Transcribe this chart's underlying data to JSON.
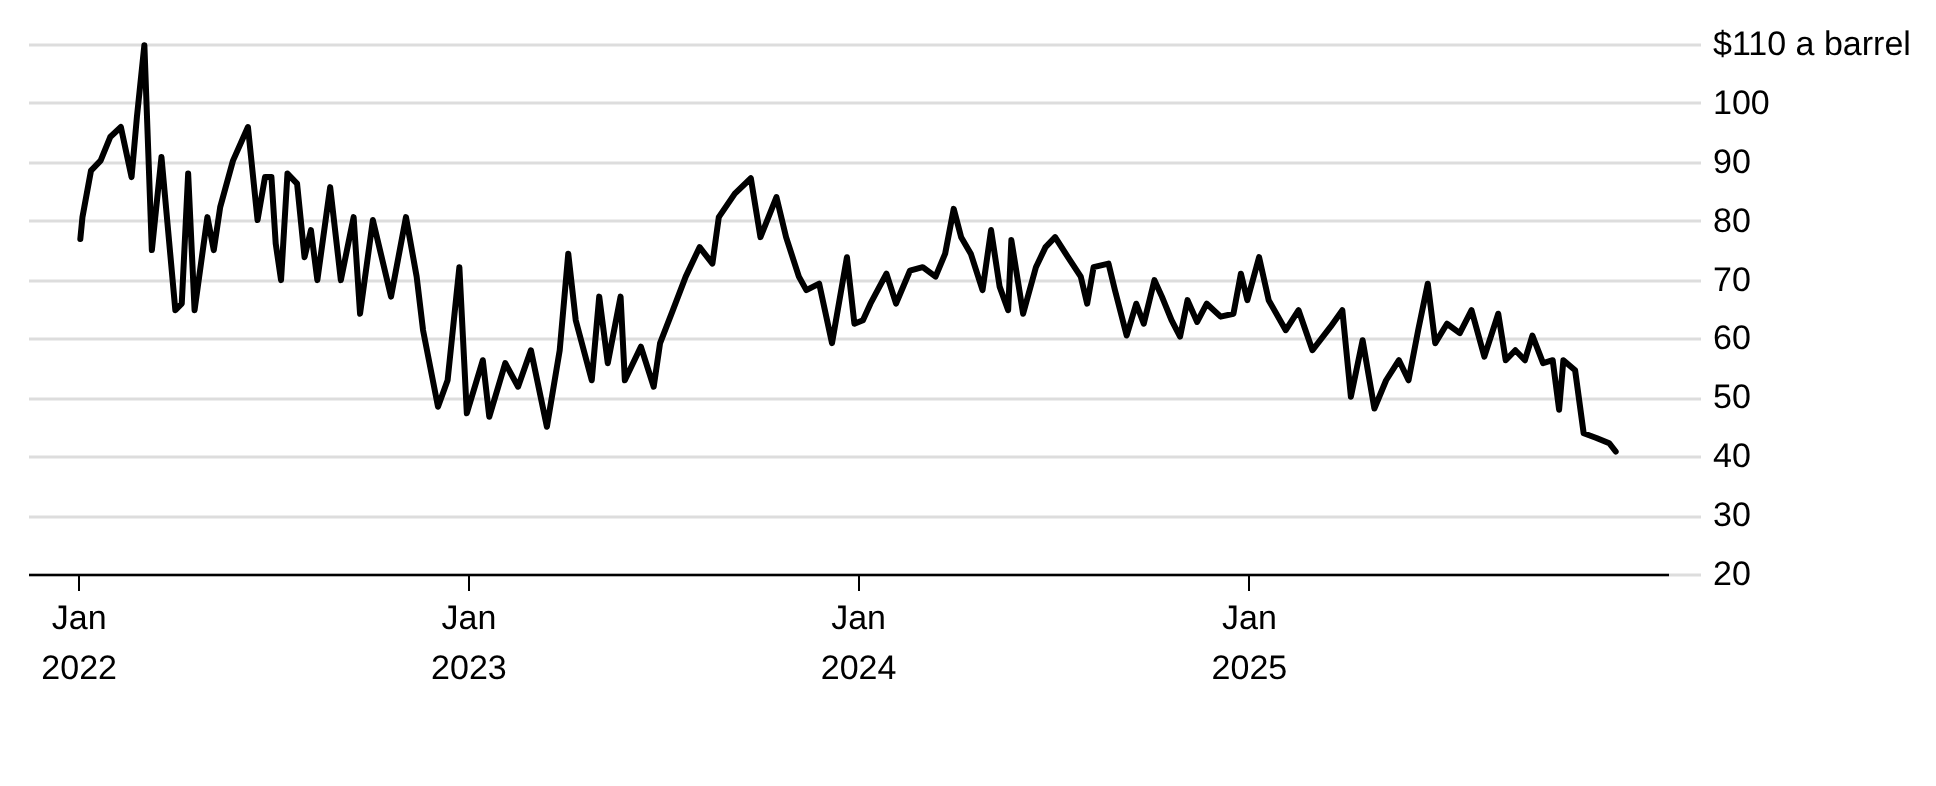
{
  "chart_data": {
    "type": "line",
    "color": "#000000",
    "line_style": "solid",
    "marker": "none",
    "grid": "y",
    "x": [
      "2022-01-03",
      "2022-01-05",
      "2022-01-13",
      "2022-01-22",
      "2022-01-31",
      "2022-02-10",
      "2022-02-20",
      "2022-02-25",
      "2022-03-04",
      "2022-03-11",
      "2022-03-20",
      "2022-04-02",
      "2022-04-08",
      "2022-04-14",
      "2022-04-20",
      "2022-05-02",
      "2022-05-08",
      "2022-05-14",
      "2022-05-26",
      "2022-06-09",
      "2022-06-18",
      "2022-06-25",
      "2022-07-01",
      "2022-07-05",
      "2022-07-10",
      "2022-07-16",
      "2022-07-25",
      "2022-08-01",
      "2022-08-07",
      "2022-08-13",
      "2022-08-25",
      "2022-09-04",
      "2022-09-16",
      "2022-09-22",
      "2022-10-04",
      "2022-10-21",
      "2022-11-04",
      "2022-11-14",
      "2022-11-20",
      "2022-12-04",
      "2022-12-13",
      "2022-12-24",
      "2022-12-31",
      "2023-01-15",
      "2023-01-21",
      "2023-02-05",
      "2023-02-17",
      "2023-03-01",
      "2023-03-16",
      "2023-03-28",
      "2023-04-05",
      "2023-04-12",
      "2023-04-27",
      "2023-05-04",
      "2023-05-12",
      "2023-05-24",
      "2023-05-28",
      "2023-06-12",
      "2023-06-24",
      "2023-06-30",
      "2023-07-12",
      "2023-07-24",
      "2023-08-06",
      "2023-08-18",
      "2023-08-24",
      "2023-09-08",
      "2023-09-23",
      "2023-10-02",
      "2023-10-17",
      "2023-10-26",
      "2023-11-07",
      "2023-11-14",
      "2023-11-26",
      "2023-12-08",
      "2023-12-22",
      "2023-12-29",
      "2024-01-06",
      "2024-01-13",
      "2024-01-28",
      "2024-02-06",
      "2024-02-19",
      "2024-03-02",
      "2024-03-14",
      "2024-03-23",
      "2024-03-31",
      "2024-04-07",
      "2024-04-16",
      "2024-04-27",
      "2024-05-05",
      "2024-05-13",
      "2024-05-21",
      "2024-05-24",
      "2024-06-04",
      "2024-06-16",
      "2024-06-25",
      "2024-07-04",
      "2024-07-16",
      "2024-07-28",
      "2024-08-03",
      "2024-08-09",
      "2024-08-23",
      "2024-08-29",
      "2024-09-09",
      "2024-09-18",
      "2024-09-25",
      "2024-10-05",
      "2024-10-12",
      "2024-10-21",
      "2024-10-29",
      "2024-11-05",
      "2024-11-14",
      "2024-11-23",
      "2024-12-06",
      "2024-12-18",
      "2024-12-25",
      "2024-12-31",
      "2025-01-11",
      "2025-01-20",
      "2025-02-05",
      "2025-02-17",
      "2025-03-02",
      "2025-03-19",
      "2025-03-30",
      "2025-04-07",
      "2025-04-18",
      "2025-04-29",
      "2025-05-10",
      "2025-05-22",
      "2025-05-31",
      "2025-06-09",
      "2025-06-18",
      "2025-06-25",
      "2025-07-06",
      "2025-07-18",
      "2025-07-29",
      "2025-08-10",
      "2025-08-23",
      "2025-08-30",
      "2025-09-08",
      "2025-09-17",
      "2025-09-24",
      "2025-10-04",
      "2025-10-13",
      "2025-10-19",
      "2025-10-23",
      "2025-11-03",
      "2025-11-11",
      "2025-11-23",
      "2025-12-05",
      "2025-12-11"
    ],
    "values": [
      76.9,
      80.6,
      88.5,
      90.2,
      94.2,
      95.9,
      87.4,
      97.6,
      109.8,
      75.0,
      90.8,
      64.8,
      65.9,
      88.0,
      64.8,
      80.6,
      75.0,
      82.3,
      90.2,
      95.9,
      80.1,
      87.4,
      87.4,
      76.1,
      69.9,
      88.0,
      86.3,
      73.8,
      78.4,
      69.9,
      85.7,
      69.9,
      80.6,
      64.2,
      80.1,
      67.1,
      80.6,
      70.5,
      61.4,
      48.4,
      52.9,
      72.1,
      47.3,
      56.3,
      46.7,
      55.8,
      51.8,
      58.0,
      45.0,
      58.0,
      74.4,
      63.1,
      52.9,
      67.1,
      55.8,
      67.1,
      52.9,
      58.6,
      51.8,
      59.2,
      64.8,
      70.5,
      75.5,
      72.7,
      80.6,
      84.6,
      87.2,
      77.2,
      84.0,
      77.2,
      70.5,
      68.2,
      69.3,
      59.2,
      73.8,
      62.5,
      63.1,
      65.9,
      71.0,
      65.9,
      71.5,
      72.1,
      70.5,
      74.4,
      82.0,
      77.2,
      74.4,
      68.2,
      78.4,
      68.8,
      64.8,
      76.7,
      64.2,
      72.1,
      75.5,
      77.2,
      73.8,
      70.5,
      65.9,
      72.1,
      72.7,
      68.2,
      60.5,
      65.9,
      62.5,
      69.9,
      67.1,
      63.1,
      60.3,
      66.5,
      62.8,
      65.9,
      63.7,
      64.2,
      71.0,
      66.5,
      73.8,
      66.5,
      61.4,
      64.8,
      58.0,
      62.0,
      64.8,
      50.1,
      59.7,
      48.1,
      52.9,
      56.3,
      52.9,
      61.4,
      69.3,
      59.2,
      62.5,
      60.9,
      64.8,
      56.9,
      64.2,
      56.3,
      58.0,
      56.3,
      60.5,
      55.8,
      56.3,
      47.9,
      56.3,
      54.6,
      43.9,
      43.1,
      42.2,
      40.8
    ],
    "xlim": [
      "2021-11-15",
      "2026-01-29"
    ],
    "xticks": [
      {
        "value": "2022-01-01",
        "label": "Jan 2022"
      },
      {
        "value": "2023-01-01",
        "label": "Jan 2023"
      },
      {
        "value": "2024-01-01",
        "label": "Jan 2024"
      },
      {
        "value": "2025-01-01",
        "label": "Jan 2025"
      }
    ],
    "ylim": [
      20,
      110
    ],
    "yticks": [
      20,
      30,
      40,
      50,
      60,
      70,
      80,
      90,
      100,
      {
        "value": 110,
        "label": "$110 a barrel"
      }
    ]
  }
}
